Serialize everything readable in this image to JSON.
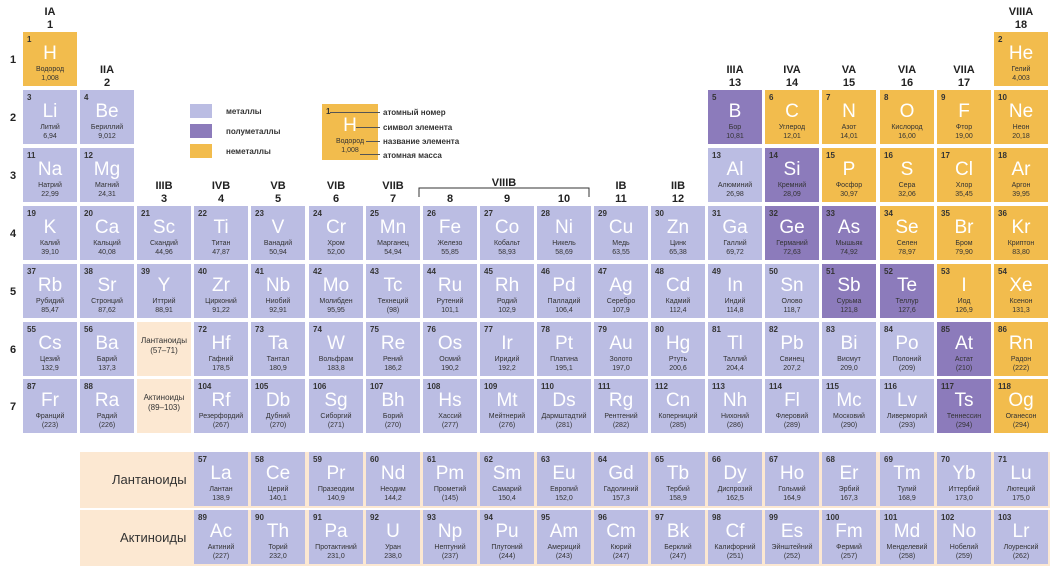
{
  "groups": [
    {
      "roman": "IA",
      "num": "1"
    },
    {
      "roman": "IIA",
      "num": "2"
    },
    {
      "roman": "IIIB",
      "num": "3"
    },
    {
      "roman": "IVB",
      "num": "4"
    },
    {
      "roman": "VB",
      "num": "5"
    },
    {
      "roman": "VIB",
      "num": "6"
    },
    {
      "roman": "VIIB",
      "num": "7"
    },
    {
      "roman": "",
      "num": "8"
    },
    {
      "roman": "",
      "num": "9"
    },
    {
      "roman": "",
      "num": "10"
    },
    {
      "roman": "IB",
      "num": "11"
    },
    {
      "roman": "IIB",
      "num": "12"
    },
    {
      "roman": "IIIA",
      "num": "13"
    },
    {
      "roman": "IVA",
      "num": "14"
    },
    {
      "roman": "VA",
      "num": "15"
    },
    {
      "roman": "VIA",
      "num": "16"
    },
    {
      "roman": "VIIA",
      "num": "17"
    },
    {
      "roman": "VIIIA",
      "num": "18"
    }
  ],
  "viiib_label": "VIIIB",
  "periods": [
    "1",
    "2",
    "3",
    "4",
    "5",
    "6",
    "7"
  ],
  "legend": {
    "metals": "металлы",
    "semimetals": "полуметаллы",
    "nonmetals": "неметаллы"
  },
  "key": {
    "num": "1",
    "sym": "H",
    "name": "Водород",
    "mass": "1,008",
    "atomic_number": "атомный номер",
    "symbol": "символ элемента",
    "element_name": "название элемента",
    "atomic_mass": "атомная масса"
  },
  "placeholders": {
    "lanthanoids": "Лантаноиды (57–71)",
    "actinoids": "Актиноиды (89–103)"
  },
  "f_labels": {
    "lanthanoids": "Лантаноиды",
    "actinoids": "Актиноиды"
  },
  "elements": [
    {
      "n": "1",
      "s": "H",
      "name": "Водород",
      "m": "1,008",
      "g": 1,
      "p": 1,
      "t": "nonmetal"
    },
    {
      "n": "2",
      "s": "He",
      "name": "Гелий",
      "m": "4,003",
      "g": 18,
      "p": 1,
      "t": "nonmetal"
    },
    {
      "n": "3",
      "s": "Li",
      "name": "Литий",
      "m": "6,94",
      "g": 1,
      "p": 2,
      "t": "metal"
    },
    {
      "n": "4",
      "s": "Be",
      "name": "Бериллий",
      "m": "9,012",
      "g": 2,
      "p": 2,
      "t": "metal"
    },
    {
      "n": "5",
      "s": "B",
      "name": "Бор",
      "m": "10,81",
      "g": 13,
      "p": 2,
      "t": "semi"
    },
    {
      "n": "6",
      "s": "C",
      "name": "Углерод",
      "m": "12,01",
      "g": 14,
      "p": 2,
      "t": "nonmetal"
    },
    {
      "n": "7",
      "s": "N",
      "name": "Азот",
      "m": "14,01",
      "g": 15,
      "p": 2,
      "t": "nonmetal"
    },
    {
      "n": "8",
      "s": "O",
      "name": "Кислород",
      "m": "16,00",
      "g": 16,
      "p": 2,
      "t": "nonmetal"
    },
    {
      "n": "9",
      "s": "F",
      "name": "Фтор",
      "m": "19,00",
      "g": 17,
      "p": 2,
      "t": "nonmetal"
    },
    {
      "n": "10",
      "s": "Ne",
      "name": "Неон",
      "m": "20,18",
      "g": 18,
      "p": 2,
      "t": "nonmetal"
    },
    {
      "n": "11",
      "s": "Na",
      "name": "Натрий",
      "m": "22,99",
      "g": 1,
      "p": 3,
      "t": "metal"
    },
    {
      "n": "12",
      "s": "Mg",
      "name": "Магний",
      "m": "24,31",
      "g": 2,
      "p": 3,
      "t": "metal"
    },
    {
      "n": "13",
      "s": "Al",
      "name": "Алюминий",
      "m": "26,98",
      "g": 13,
      "p": 3,
      "t": "metal"
    },
    {
      "n": "14",
      "s": "Si",
      "name": "Кремний",
      "m": "28,09",
      "g": 14,
      "p": 3,
      "t": "semi"
    },
    {
      "n": "15",
      "s": "P",
      "name": "Фосфор",
      "m": "30,97",
      "g": 15,
      "p": 3,
      "t": "nonmetal"
    },
    {
      "n": "16",
      "s": "S",
      "name": "Сера",
      "m": "32,06",
      "g": 16,
      "p": 3,
      "t": "nonmetal"
    },
    {
      "n": "17",
      "s": "Cl",
      "name": "Хлор",
      "m": "35,45",
      "g": 17,
      "p": 3,
      "t": "nonmetal"
    },
    {
      "n": "18",
      "s": "Ar",
      "name": "Аргон",
      "m": "39,95",
      "g": 18,
      "p": 3,
      "t": "nonmetal"
    },
    {
      "n": "19",
      "s": "K",
      "name": "Калий",
      "m": "39,10",
      "g": 1,
      "p": 4,
      "t": "metal"
    },
    {
      "n": "20",
      "s": "Ca",
      "name": "Кальций",
      "m": "40,08",
      "g": 2,
      "p": 4,
      "t": "metal"
    },
    {
      "n": "21",
      "s": "Sc",
      "name": "Скандий",
      "m": "44,96",
      "g": 3,
      "p": 4,
      "t": "metal"
    },
    {
      "n": "22",
      "s": "Ti",
      "name": "Титан",
      "m": "47,87",
      "g": 4,
      "p": 4,
      "t": "metal"
    },
    {
      "n": "23",
      "s": "V",
      "name": "Ванадий",
      "m": "50,94",
      "g": 5,
      "p": 4,
      "t": "metal"
    },
    {
      "n": "24",
      "s": "Cr",
      "name": "Хром",
      "m": "52,00",
      "g": 6,
      "p": 4,
      "t": "metal"
    },
    {
      "n": "25",
      "s": "Mn",
      "name": "Марганец",
      "m": "54,94",
      "g": 7,
      "p": 4,
      "t": "metal"
    },
    {
      "n": "26",
      "s": "Fe",
      "name": "Железо",
      "m": "55,85",
      "g": 8,
      "p": 4,
      "t": "metal"
    },
    {
      "n": "27",
      "s": "Co",
      "name": "Кобальт",
      "m": "58,93",
      "g": 9,
      "p": 4,
      "t": "metal"
    },
    {
      "n": "28",
      "s": "Ni",
      "name": "Никель",
      "m": "58,69",
      "g": 10,
      "p": 4,
      "t": "metal"
    },
    {
      "n": "29",
      "s": "Cu",
      "name": "Медь",
      "m": "63,55",
      "g": 11,
      "p": 4,
      "t": "metal"
    },
    {
      "n": "30",
      "s": "Zn",
      "name": "Цинк",
      "m": "65,38",
      "g": 12,
      "p": 4,
      "t": "metal"
    },
    {
      "n": "31",
      "s": "Ga",
      "name": "Галлий",
      "m": "69,72",
      "g": 13,
      "p": 4,
      "t": "metal"
    },
    {
      "n": "32",
      "s": "Ge",
      "name": "Германий",
      "m": "72,63",
      "g": 14,
      "p": 4,
      "t": "semi"
    },
    {
      "n": "33",
      "s": "As",
      "name": "Мышьяк",
      "m": "74,92",
      "g": 15,
      "p": 4,
      "t": "semi"
    },
    {
      "n": "34",
      "s": "Se",
      "name": "Селен",
      "m": "78,97",
      "g": 16,
      "p": 4,
      "t": "nonmetal"
    },
    {
      "n": "35",
      "s": "Br",
      "name": "Бром",
      "m": "79,90",
      "g": 17,
      "p": 4,
      "t": "nonmetal"
    },
    {
      "n": "36",
      "s": "Kr",
      "name": "Криптон",
      "m": "83,80",
      "g": 18,
      "p": 4,
      "t": "nonmetal"
    },
    {
      "n": "37",
      "s": "Rb",
      "name": "Рубидий",
      "m": "85,47",
      "g": 1,
      "p": 5,
      "t": "metal"
    },
    {
      "n": "38",
      "s": "Sr",
      "name": "Стронций",
      "m": "87,62",
      "g": 2,
      "p": 5,
      "t": "metal"
    },
    {
      "n": "39",
      "s": "Y",
      "name": "Иттрий",
      "m": "88,91",
      "g": 3,
      "p": 5,
      "t": "metal"
    },
    {
      "n": "40",
      "s": "Zr",
      "name": "Цирконий",
      "m": "91,22",
      "g": 4,
      "p": 5,
      "t": "metal"
    },
    {
      "n": "41",
      "s": "Nb",
      "name": "Ниобий",
      "m": "92,91",
      "g": 5,
      "p": 5,
      "t": "metal"
    },
    {
      "n": "42",
      "s": "Mo",
      "name": "Молибден",
      "m": "95,95",
      "g": 6,
      "p": 5,
      "t": "metal"
    },
    {
      "n": "43",
      "s": "Tc",
      "name": "Технеций",
      "m": "(98)",
      "g": 7,
      "p": 5,
      "t": "metal"
    },
    {
      "n": "44",
      "s": "Ru",
      "name": "Рутений",
      "m": "101,1",
      "g": 8,
      "p": 5,
      "t": "metal"
    },
    {
      "n": "45",
      "s": "Rh",
      "name": "Родий",
      "m": "102,9",
      "g": 9,
      "p": 5,
      "t": "metal"
    },
    {
      "n": "46",
      "s": "Pd",
      "name": "Палладий",
      "m": "106,4",
      "g": 10,
      "p": 5,
      "t": "metal"
    },
    {
      "n": "47",
      "s": "Ag",
      "name": "Серебро",
      "m": "107,9",
      "g": 11,
      "p": 5,
      "t": "metal"
    },
    {
      "n": "48",
      "s": "Cd",
      "name": "Кадмий",
      "m": "112,4",
      "g": 12,
      "p": 5,
      "t": "metal"
    },
    {
      "n": "49",
      "s": "In",
      "name": "Индий",
      "m": "114,8",
      "g": 13,
      "p": 5,
      "t": "metal"
    },
    {
      "n": "50",
      "s": "Sn",
      "name": "Олово",
      "m": "118,7",
      "g": 14,
      "p": 5,
      "t": "metal"
    },
    {
      "n": "51",
      "s": "Sb",
      "name": "Сурьма",
      "m": "121,8",
      "g": 15,
      "p": 5,
      "t": "semi"
    },
    {
      "n": "52",
      "s": "Te",
      "name": "Теллур",
      "m": "127,6",
      "g": 16,
      "p": 5,
      "t": "semi"
    },
    {
      "n": "53",
      "s": "I",
      "name": "Иод",
      "m": "126,9",
      "g": 17,
      "p": 5,
      "t": "nonmetal"
    },
    {
      "n": "54",
      "s": "Xe",
      "name": "Ксенон",
      "m": "131,3",
      "g": 18,
      "p": 5,
      "t": "nonmetal"
    },
    {
      "n": "55",
      "s": "Cs",
      "name": "Цезий",
      "m": "132,9",
      "g": 1,
      "p": 6,
      "t": "metal"
    },
    {
      "n": "56",
      "s": "Ba",
      "name": "Барий",
      "m": "137,3",
      "g": 2,
      "p": 6,
      "t": "metal"
    },
    {
      "n": "72",
      "s": "Hf",
      "name": "Гафний",
      "m": "178,5",
      "g": 4,
      "p": 6,
      "t": "metal"
    },
    {
      "n": "73",
      "s": "Ta",
      "name": "Тантал",
      "m": "180,9",
      "g": 5,
      "p": 6,
      "t": "metal"
    },
    {
      "n": "74",
      "s": "W",
      "name": "Вольфрам",
      "m": "183,8",
      "g": 6,
      "p": 6,
      "t": "metal"
    },
    {
      "n": "75",
      "s": "Re",
      "name": "Рений",
      "m": "186,2",
      "g": 7,
      "p": 6,
      "t": "metal"
    },
    {
      "n": "76",
      "s": "Os",
      "name": "Осмий",
      "m": "190,2",
      "g": 8,
      "p": 6,
      "t": "metal"
    },
    {
      "n": "77",
      "s": "Ir",
      "name": "Иридий",
      "m": "192,2",
      "g": 9,
      "p": 6,
      "t": "metal"
    },
    {
      "n": "78",
      "s": "Pt",
      "name": "Платина",
      "m": "195,1",
      "g": 10,
      "p": 6,
      "t": "metal"
    },
    {
      "n": "79",
      "s": "Au",
      "name": "Золото",
      "m": "197,0",
      "g": 11,
      "p": 6,
      "t": "metal"
    },
    {
      "n": "80",
      "s": "Hg",
      "name": "Ртуть",
      "m": "200,6",
      "g": 12,
      "p": 6,
      "t": "metal"
    },
    {
      "n": "81",
      "s": "Tl",
      "name": "Таллий",
      "m": "204,4",
      "g": 13,
      "p": 6,
      "t": "metal"
    },
    {
      "n": "82",
      "s": "Pb",
      "name": "Свинец",
      "m": "207,2",
      "g": 14,
      "p": 6,
      "t": "metal"
    },
    {
      "n": "83",
      "s": "Bi",
      "name": "Висмут",
      "m": "209,0",
      "g": 15,
      "p": 6,
      "t": "metal"
    },
    {
      "n": "84",
      "s": "Po",
      "name": "Полоний",
      "m": "(209)",
      "g": 16,
      "p": 6,
      "t": "metal"
    },
    {
      "n": "85",
      "s": "At",
      "name": "Астат",
      "m": "(210)",
      "g": 17,
      "p": 6,
      "t": "semi"
    },
    {
      "n": "86",
      "s": "Rn",
      "name": "Радон",
      "m": "(222)",
      "g": 18,
      "p": 6,
      "t": "nonmetal"
    },
    {
      "n": "87",
      "s": "Fr",
      "name": "Франций",
      "m": "(223)",
      "g": 1,
      "p": 7,
      "t": "metal"
    },
    {
      "n": "88",
      "s": "Ra",
      "name": "Радий",
      "m": "(226)",
      "g": 2,
      "p": 7,
      "t": "metal"
    },
    {
      "n": "104",
      "s": "Rf",
      "name": "Резерфордий",
      "m": "(267)",
      "g": 4,
      "p": 7,
      "t": "metal"
    },
    {
      "n": "105",
      "s": "Db",
      "name": "Дубний",
      "m": "(270)",
      "g": 5,
      "p": 7,
      "t": "metal"
    },
    {
      "n": "106",
      "s": "Sg",
      "name": "Сиборгий",
      "m": "(271)",
      "g": 6,
      "p": 7,
      "t": "metal"
    },
    {
      "n": "107",
      "s": "Bh",
      "name": "Борий",
      "m": "(270)",
      "g": 7,
      "p": 7,
      "t": "metal"
    },
    {
      "n": "108",
      "s": "Hs",
      "name": "Хассий",
      "m": "(277)",
      "g": 8,
      "p": 7,
      "t": "metal"
    },
    {
      "n": "109",
      "s": "Mt",
      "name": "Мейтнерий",
      "m": "(276)",
      "g": 9,
      "p": 7,
      "t": "metal"
    },
    {
      "n": "110",
      "s": "Ds",
      "name": "Дармштадтий",
      "m": "(281)",
      "g": 10,
      "p": 7,
      "t": "metal"
    },
    {
      "n": "111",
      "s": "Rg",
      "name": "Рентгений",
      "m": "(282)",
      "g": 11,
      "p": 7,
      "t": "metal"
    },
    {
      "n": "112",
      "s": "Cn",
      "name": "Коперниций",
      "m": "(285)",
      "g": 12,
      "p": 7,
      "t": "metal"
    },
    {
      "n": "113",
      "s": "Nh",
      "name": "Нихоний",
      "m": "(286)",
      "g": 13,
      "p": 7,
      "t": "metal"
    },
    {
      "n": "114",
      "s": "Fl",
      "name": "Флеровий",
      "m": "(289)",
      "g": 14,
      "p": 7,
      "t": "metal"
    },
    {
      "n": "115",
      "s": "Mc",
      "name": "Московий",
      "m": "(290)",
      "g": 15,
      "p": 7,
      "t": "metal"
    },
    {
      "n": "116",
      "s": "Lv",
      "name": "Ливерморий",
      "m": "(293)",
      "g": 16,
      "p": 7,
      "t": "metal"
    },
    {
      "n": "117",
      "s": "Ts",
      "name": "Теннессин",
      "m": "(294)",
      "g": 17,
      "p": 7,
      "t": "semi"
    },
    {
      "n": "118",
      "s": "Og",
      "name": "Оганесон",
      "m": "(294)",
      "g": 18,
      "p": 7,
      "t": "nonmetal"
    }
  ],
  "lanthanoids": [
    {
      "n": "57",
      "s": "La",
      "name": "Лантан",
      "m": "138,9"
    },
    {
      "n": "58",
      "s": "Ce",
      "name": "Церий",
      "m": "140,1"
    },
    {
      "n": "59",
      "s": "Pr",
      "name": "Празеодим",
      "m": "140,9"
    },
    {
      "n": "60",
      "s": "Nd",
      "name": "Неодим",
      "m": "144,2"
    },
    {
      "n": "61",
      "s": "Pm",
      "name": "Прометий",
      "m": "(145)"
    },
    {
      "n": "62",
      "s": "Sm",
      "name": "Самарий",
      "m": "150,4"
    },
    {
      "n": "63",
      "s": "Eu",
      "name": "Европий",
      "m": "152,0"
    },
    {
      "n": "64",
      "s": "Gd",
      "name": "Гадолиний",
      "m": "157,3"
    },
    {
      "n": "65",
      "s": "Tb",
      "name": "Тербий",
      "m": "158,9"
    },
    {
      "n": "66",
      "s": "Dy",
      "name": "Диспрозий",
      "m": "162,5"
    },
    {
      "n": "67",
      "s": "Ho",
      "name": "Гольмий",
      "m": "164,9"
    },
    {
      "n": "68",
      "s": "Er",
      "name": "Эрбий",
      "m": "167,3"
    },
    {
      "n": "69",
      "s": "Tm",
      "name": "Тулий",
      "m": "168,9"
    },
    {
      "n": "70",
      "s": "Yb",
      "name": "Иттербий",
      "m": "173,0"
    },
    {
      "n": "71",
      "s": "Lu",
      "name": "Лютеций",
      "m": "175,0"
    }
  ],
  "actinoids": [
    {
      "n": "89",
      "s": "Ac",
      "name": "Актиний",
      "m": "(227)"
    },
    {
      "n": "90",
      "s": "Th",
      "name": "Торий",
      "m": "232,0"
    },
    {
      "n": "91",
      "s": "Pa",
      "name": "Протактиний",
      "m": "231,0"
    },
    {
      "n": "92",
      "s": "U",
      "name": "Уран",
      "m": "238,0"
    },
    {
      "n": "93",
      "s": "Np",
      "name": "Нептуний",
      "m": "(237)"
    },
    {
      "n": "94",
      "s": "Pu",
      "name": "Плутоний",
      "m": "(244)"
    },
    {
      "n": "95",
      "s": "Am",
      "name": "Америций",
      "m": "(243)"
    },
    {
      "n": "96",
      "s": "Cm",
      "name": "Кюрий",
      "m": "(247)"
    },
    {
      "n": "97",
      "s": "Bk",
      "name": "Берклий",
      "m": "(247)"
    },
    {
      "n": "98",
      "s": "Cf",
      "name": "Калифорний",
      "m": "(251)"
    },
    {
      "n": "99",
      "s": "Es",
      "name": "Эйнштейний",
      "m": "(252)"
    },
    {
      "n": "100",
      "s": "Fm",
      "name": "Фермий",
      "m": "(257)"
    },
    {
      "n": "101",
      "s": "Md",
      "name": "Менделевий",
      "m": "(258)"
    },
    {
      "n": "102",
      "s": "No",
      "name": "Нобелий",
      "m": "(259)"
    },
    {
      "n": "103",
      "s": "Lr",
      "name": "Лоуренсий",
      "m": "(262)"
    }
  ]
}
